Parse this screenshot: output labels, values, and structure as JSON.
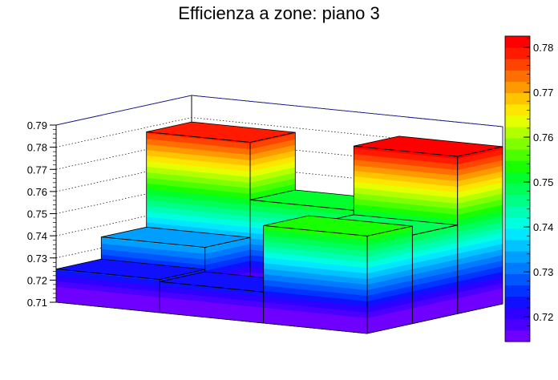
{
  "chart_data": {
    "type": "lego3d",
    "title": "Efficienza a zone: piano 3",
    "xlabel": "",
    "ylabel": "",
    "zlabel": "",
    "zlim": [
      0.71,
      0.79
    ],
    "z_ticks": [
      "0.71",
      "0.72",
      "0.73",
      "0.74",
      "0.75",
      "0.76",
      "0.77",
      "0.78",
      "0.79"
    ],
    "grid": true,
    "palette": "rainbow",
    "colorbar": {
      "range": [
        0.7145,
        0.7825
      ],
      "labels": [
        "0.72",
        "0.73",
        "0.74",
        "0.75",
        "0.76",
        "0.77",
        "0.78"
      ],
      "colors": [
        "#6f00ff",
        "#4b00ff",
        "#2d00ff",
        "#1010ff",
        "#0033ff",
        "#0057ff",
        "#007bff",
        "#009fff",
        "#00c3ff",
        "#00e7ff",
        "#00ffe0",
        "#00ffb3",
        "#00ff86",
        "#00ff59",
        "#00ff2c",
        "#18ff00",
        "#4cff00",
        "#80ff00",
        "#b3ff00",
        "#e6ff00",
        "#ffe600",
        "#ffc300",
        "#ff9900",
        "#ff6e00",
        "#ff4300",
        "#ff1a00",
        "#ff0000"
      ]
    },
    "grid_cells": [
      {
        "row": 0,
        "col": 0,
        "value": 0.725
      },
      {
        "row": 0,
        "col": 1,
        "value": 0.724
      },
      {
        "row": 0,
        "col": 2,
        "value": 0.754
      },
      {
        "row": 1,
        "col": 0,
        "value": 0.735
      },
      {
        "row": 1,
        "col": 1,
        "value": 0.717
      },
      {
        "row": 1,
        "col": 2,
        "value": 0.75
      },
      {
        "row": 2,
        "col": 0,
        "value": 0.778
      },
      {
        "row": 2,
        "col": 1,
        "value": 0.752
      },
      {
        "row": 2,
        "col": 2,
        "value": 0.781
      }
    ]
  }
}
